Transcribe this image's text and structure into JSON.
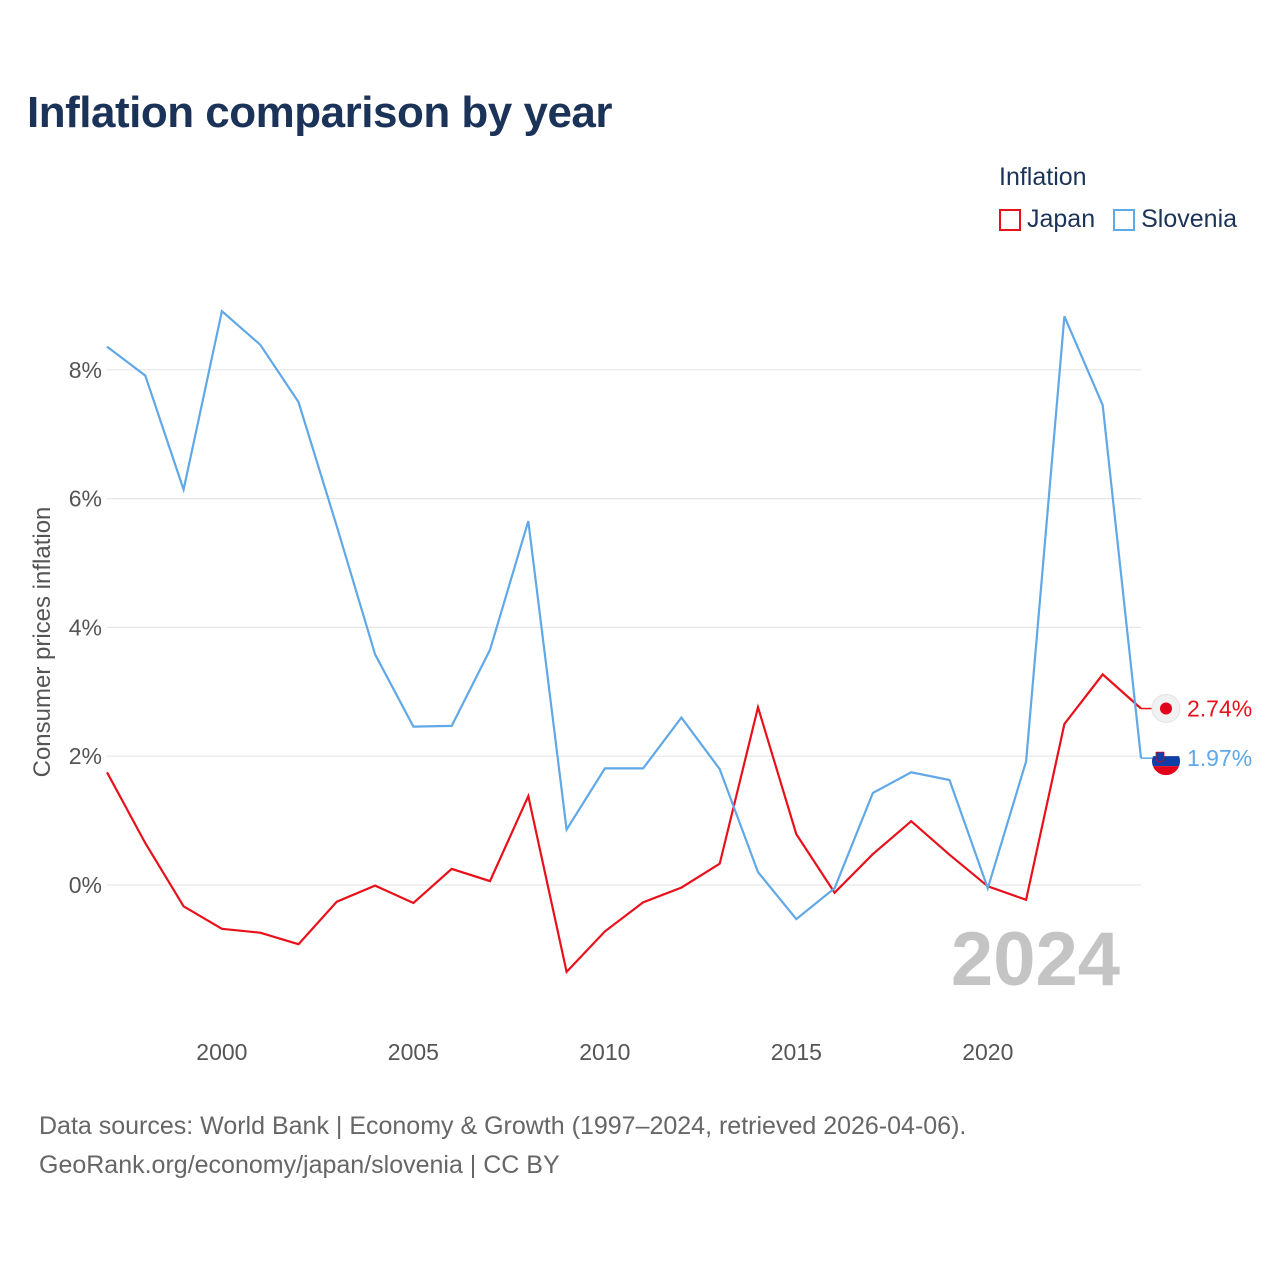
{
  "title": "Inflation comparison by year",
  "legend": {
    "title": "Inflation",
    "items": [
      {
        "label": "Japan",
        "color": "#e8111b"
      },
      {
        "label": "Slovenia",
        "color": "#60a8e6"
      }
    ]
  },
  "footer": {
    "line1": "Data sources: World Bank | Economy & Growth (1997–2024, retrieved 2026-04-06).",
    "line2": "GeoRank.org/economy/japan/slovenia | CC BY"
  },
  "chart_data": {
    "type": "line",
    "title": "Inflation comparison by year",
    "xlabel": "",
    "ylabel": "Consumer prices inflation",
    "x": [
      1997,
      1998,
      1999,
      2000,
      2001,
      2002,
      2003,
      2004,
      2005,
      2006,
      2007,
      2008,
      2009,
      2010,
      2011,
      2012,
      2013,
      2014,
      2015,
      2016,
      2017,
      2018,
      2019,
      2020,
      2021,
      2022,
      2023,
      2024
    ],
    "series": [
      {
        "name": "Japan",
        "color": "#e8111b",
        "values": [
          1.75,
          0.65,
          -0.33,
          -0.68,
          -0.74,
          -0.92,
          -0.26,
          -0.01,
          -0.28,
          0.25,
          0.06,
          1.38,
          -1.35,
          -0.72,
          -0.27,
          -0.04,
          0.33,
          2.76,
          0.79,
          -0.12,
          0.48,
          0.99,
          0.47,
          -0.02,
          -0.23,
          2.5,
          3.27,
          2.74
        ]
      },
      {
        "name": "Slovenia",
        "color": "#60a8e6",
        "values": [
          8.36,
          7.91,
          6.14,
          8.91,
          8.39,
          7.5,
          5.57,
          3.58,
          2.46,
          2.47,
          3.65,
          5.65,
          0.86,
          1.81,
          1.81,
          2.6,
          1.8,
          0.2,
          -0.53,
          -0.05,
          1.43,
          1.75,
          1.63,
          -0.05,
          1.92,
          8.83,
          7.45,
          1.97
        ]
      }
    ],
    "xticks": [
      2000,
      2005,
      2010,
      2015,
      2020
    ],
    "yticks": [
      0,
      2,
      4,
      6,
      8
    ],
    "ytick_labels": [
      "0%",
      "2%",
      "4%",
      "6%",
      "8%"
    ],
    "xlim": [
      1997,
      2024
    ],
    "ylim": [
      -1.9,
      9.6
    ],
    "grid": true,
    "year_label": "2024",
    "end_labels": [
      {
        "series": "Japan",
        "text": "2.74%",
        "icon": "japan-flag-icon",
        "value": 2.74
      },
      {
        "series": "Slovenia",
        "text": "1.97%",
        "icon": "slovenia-flag-icon",
        "value": 1.97
      }
    ]
  }
}
